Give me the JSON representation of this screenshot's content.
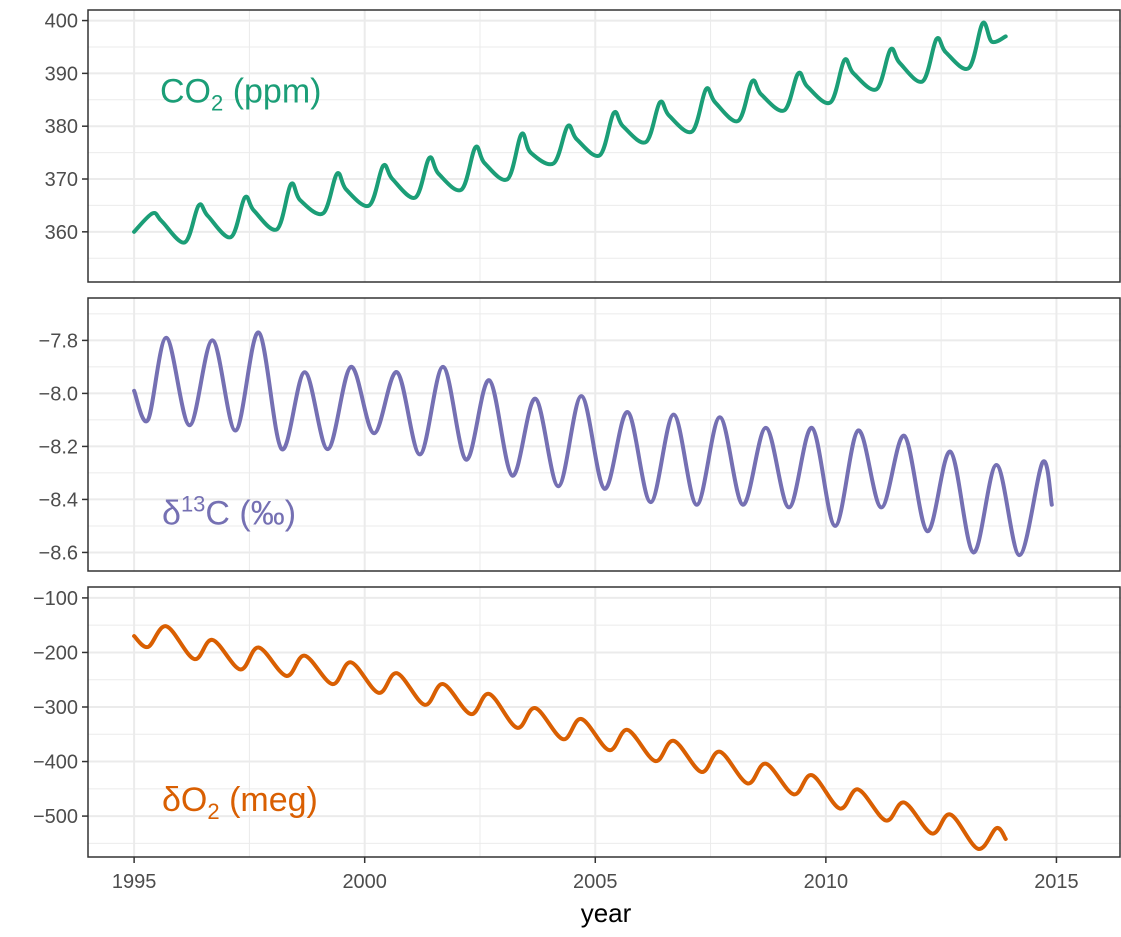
{
  "x_axis": {
    "label": "year",
    "range": [
      1994.0,
      2016.4
    ],
    "ticks": [
      1995,
      2000,
      2005,
      2010,
      2015
    ],
    "minor_ticks": [
      1997.5,
      2002.5,
      2007.5,
      2012.5
    ]
  },
  "panels": [
    {
      "id": "co2",
      "label_main": "CO",
      "label_sub": "2",
      "label_rest": " (ppm)",
      "color": "#1b9e77",
      "ylim": [
        350.5,
        402
      ],
      "y_ticks": [
        360,
        370,
        380,
        390,
        400
      ],
      "y_tick_labels": [
        "360",
        "370",
        "380",
        "390",
        "400"
      ],
      "label_pos": "upper-left"
    },
    {
      "id": "d13c",
      "label_main": "δ",
      "label_sup": "13",
      "label_rest": "C (‰)",
      "color": "#7570b3",
      "ylim": [
        -8.67,
        -7.64
      ],
      "y_ticks": [
        -8.6,
        -8.4,
        -8.2,
        -8.0,
        -7.8
      ],
      "y_tick_labels": [
        "−8.6",
        "−8.4",
        "−8.2",
        "−8.0",
        "−7.8"
      ],
      "label_pos": "lower-left"
    },
    {
      "id": "do2",
      "label_main": "δO",
      "label_sub": "2",
      "label_rest": " (meg)",
      "color": "#d95f02",
      "ylim": [
        -575,
        -80
      ],
      "y_ticks": [
        -500,
        -400,
        -300,
        -200,
        -100
      ],
      "y_tick_labels": [
        "−500",
        "−400",
        "−300",
        "−200",
        "−100"
      ],
      "label_pos": "lower-left"
    }
  ],
  "chart_data": [
    {
      "type": "line",
      "title": "",
      "xlabel": "year",
      "ylabel": "",
      "ylim": [
        350.5,
        402
      ],
      "grid": true,
      "series": [
        {
          "name": "CO2 (ppm)",
          "x": [
            1995.0,
            1995.4,
            1995.6,
            1996.1,
            1996.4,
            1996.6,
            1997.1,
            1997.4,
            1997.6,
            1998.1,
            1998.4,
            1998.6,
            1999.1,
            1999.4,
            1999.6,
            2000.1,
            2000.4,
            2000.6,
            2001.1,
            2001.4,
            2001.6,
            2002.1,
            2002.4,
            2002.6,
            2003.1,
            2003.4,
            2003.6,
            2004.1,
            2004.4,
            2004.6,
            2005.1,
            2005.4,
            2005.6,
            2006.1,
            2006.4,
            2006.6,
            2007.1,
            2007.4,
            2007.6,
            2008.1,
            2008.4,
            2008.6,
            2009.1,
            2009.4,
            2009.6,
            2010.1,
            2010.4,
            2010.6,
            2011.1,
            2011.4,
            2011.6,
            2012.1,
            2012.4,
            2012.6,
            2013.1,
            2013.4,
            2013.6,
            2013.9
          ],
          "values": [
            360.0,
            363.5,
            362.0,
            358.0,
            365.0,
            363.0,
            359.0,
            366.5,
            364.0,
            360.5,
            369.0,
            366.0,
            363.5,
            371.0,
            368.0,
            365.0,
            372.5,
            370.0,
            366.5,
            374.0,
            371.0,
            368.0,
            376.0,
            373.0,
            370.0,
            378.5,
            375.0,
            373.0,
            380.0,
            377.5,
            374.5,
            382.5,
            380.0,
            377.0,
            384.5,
            382.0,
            379.0,
            387.0,
            384.5,
            381.0,
            388.5,
            386.0,
            383.0,
            390.0,
            387.5,
            384.5,
            392.5,
            390.0,
            387.0,
            394.5,
            392.0,
            388.5,
            396.5,
            394.0,
            391.0,
            399.5,
            396.0,
            397.0
          ]
        }
      ]
    },
    {
      "type": "line",
      "title": "",
      "xlabel": "year",
      "ylabel": "",
      "ylim": [
        -8.67,
        -7.64
      ],
      "grid": true,
      "series": [
        {
          "name": "δ13C (‰)",
          "x": [
            1995.0,
            1995.3,
            1995.7,
            1996.2,
            1996.7,
            1997.2,
            1997.7,
            1998.2,
            1998.7,
            1999.2,
            1999.7,
            2000.2,
            2000.7,
            2001.2,
            2001.7,
            2002.2,
            2002.7,
            2003.2,
            2003.7,
            2004.2,
            2004.7,
            2005.2,
            2005.7,
            2006.2,
            2006.7,
            2007.2,
            2007.7,
            2008.2,
            2008.7,
            2009.2,
            2009.7,
            2010.2,
            2010.7,
            2011.2,
            2011.7,
            2012.2,
            2012.7,
            2013.2,
            2013.7,
            2014.2,
            2014.7,
            2014.9
          ],
          "values": [
            -7.99,
            -8.1,
            -7.79,
            -8.12,
            -7.8,
            -8.14,
            -7.77,
            -8.21,
            -7.92,
            -8.21,
            -7.9,
            -8.15,
            -7.92,
            -8.23,
            -7.9,
            -8.25,
            -7.95,
            -8.31,
            -8.02,
            -8.35,
            -8.01,
            -8.36,
            -8.07,
            -8.41,
            -8.08,
            -8.42,
            -8.09,
            -8.42,
            -8.13,
            -8.43,
            -8.13,
            -8.5,
            -8.14,
            -8.43,
            -8.16,
            -8.52,
            -8.22,
            -8.6,
            -8.27,
            -8.61,
            -8.26,
            -8.42
          ]
        }
      ]
    },
    {
      "type": "line",
      "title": "",
      "xlabel": "year",
      "ylabel": "",
      "ylim": [
        -575,
        -80
      ],
      "grid": true,
      "series": [
        {
          "name": "δO2 (meg)",
          "x": [
            1995.0,
            1995.3,
            1995.7,
            1996.3,
            1996.7,
            1997.3,
            1997.7,
            1998.3,
            1998.7,
            1999.3,
            1999.7,
            2000.3,
            2000.7,
            2001.3,
            2001.7,
            2002.3,
            2002.7,
            2003.3,
            2003.7,
            2004.3,
            2004.7,
            2005.3,
            2005.7,
            2006.3,
            2006.7,
            2007.3,
            2007.7,
            2008.3,
            2008.7,
            2009.3,
            2009.7,
            2010.3,
            2010.7,
            2011.3,
            2011.7,
            2012.3,
            2012.7,
            2013.3,
            2013.7,
            2013.9
          ],
          "values": [
            -170,
            -190,
            -152,
            -212,
            -177,
            -231,
            -191,
            -243,
            -206,
            -258,
            -218,
            -274,
            -238,
            -296,
            -258,
            -313,
            -276,
            -338,
            -302,
            -359,
            -322,
            -379,
            -342,
            -399,
            -362,
            -419,
            -382,
            -440,
            -404,
            -460,
            -425,
            -486,
            -451,
            -508,
            -475,
            -532,
            -497,
            -560,
            -522,
            -542
          ]
        }
      ]
    }
  ]
}
